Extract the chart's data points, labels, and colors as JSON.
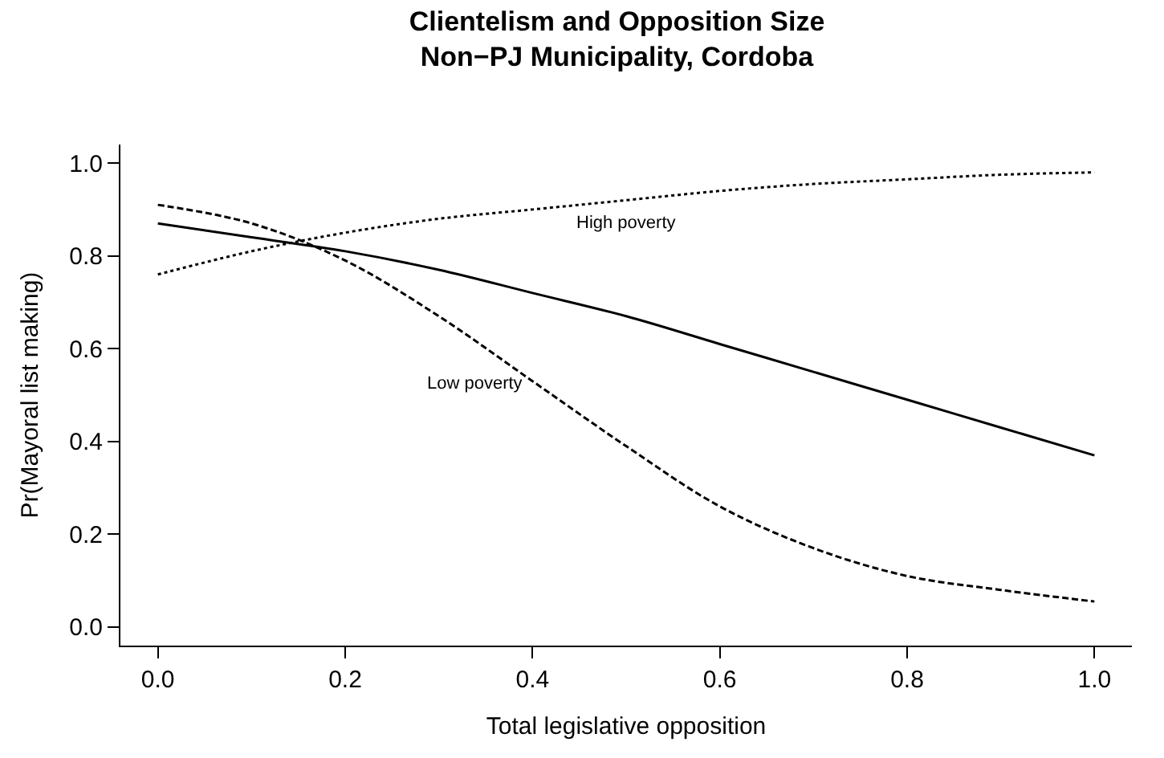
{
  "chart_data": {
    "type": "line",
    "title": "Clientelism and Opposition Size\nNon−PJ Municipality, Cordoba",
    "xlabel": "Total legislative opposition",
    "ylabel": "Pr(Mayoral list making)",
    "x": [
      0,
      0.1,
      0.2,
      0.3,
      0.4,
      0.5,
      0.6,
      0.7,
      0.8,
      0.9,
      1.0
    ],
    "series": [
      {
        "color": "#000000",
        "line_style": "solid",
        "values": [
          0.87,
          0.84,
          0.81,
          0.77,
          0.72,
          0.67,
          0.61,
          0.55,
          0.49,
          0.43,
          0.37
        ]
      },
      {
        "name": "Low poverty",
        "color": "#000000",
        "line_style": "dashed",
        "values": [
          0.91,
          0.87,
          0.79,
          0.67,
          0.53,
          0.39,
          0.26,
          0.17,
          0.11,
          0.08,
          0.055
        ]
      },
      {
        "name": "High poverty",
        "color": "#000000",
        "line_style": "dotted",
        "values": [
          0.76,
          0.81,
          0.85,
          0.88,
          0.9,
          0.92,
          0.94,
          0.955,
          0.965,
          0.975,
          0.98
        ]
      }
    ],
    "xlim": [
      -0.04,
      1.04
    ],
    "ylim": [
      -0.04,
      1.04
    ],
    "xticks": [
      {
        "value": 0,
        "label": "0.0"
      },
      {
        "value": 0.2,
        "label": "0.2"
      },
      {
        "value": 0.4,
        "label": "0.4"
      },
      {
        "value": 0.6,
        "label": "0.6"
      },
      {
        "value": 0.8,
        "label": "0.8"
      },
      {
        "value": 1.0,
        "label": "1.0"
      }
    ],
    "yticks": [
      {
        "value": 0,
        "label": "0.0"
      },
      {
        "value": 0.2,
        "label": "0.2"
      },
      {
        "value": 0.4,
        "label": "0.4"
      },
      {
        "value": 0.6,
        "label": "0.6"
      },
      {
        "value": 0.8,
        "label": "0.8"
      },
      {
        "value": 1.0,
        "label": "1.0"
      }
    ],
    "legend": false,
    "marker": "none"
  }
}
